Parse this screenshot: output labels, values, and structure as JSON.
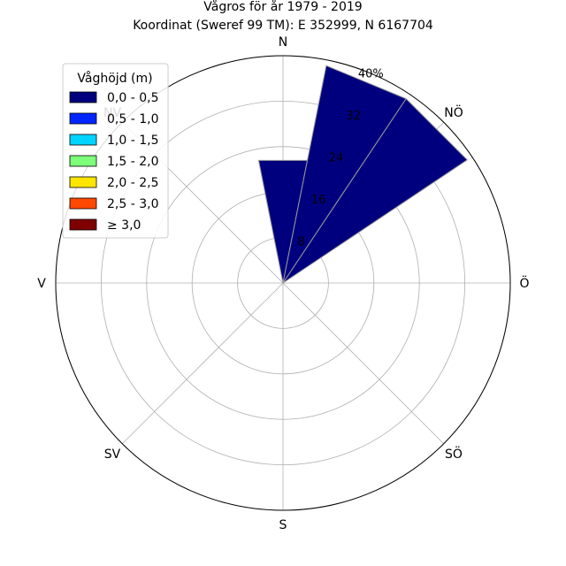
{
  "chart_data": {
    "type": "windrose",
    "title": "Vågros för år 1979 - 2019",
    "subtitle": "Koordinat (Sweref 99 TM): E 352999, N 6167704",
    "directions": [
      "N",
      "NÖ",
      "Ö",
      "SÖ",
      "S",
      "SV",
      "V",
      "NV"
    ],
    "radial_ticks": [
      "8",
      "16",
      "24",
      "32",
      "40%"
    ],
    "radial_tick_values": [
      8,
      16,
      24,
      32,
      40
    ],
    "r_max": 40,
    "legend": {
      "title": "Våghöjd (m)",
      "placement": "top-left",
      "bins": [
        "0,0 - 0,5",
        "0,5 - 1,0",
        "1,0 - 1,5",
        "1,5 - 2,0",
        "2,0 - 2,5",
        "2,5 - 3,0",
        "≥ 3,0"
      ],
      "colors": [
        "#00007f",
        "#0025ff",
        "#00d4ff",
        "#7dff7a",
        "#ffe500",
        "#ff4800",
        "#7f0000"
      ]
    },
    "bars": [
      {
        "direction_deg": 0,
        "width_deg": 22.5,
        "bin": "0,0 - 0,5",
        "value": 22
      },
      {
        "direction_deg": 22.5,
        "width_deg": 22.5,
        "bin": "0,0 - 0,5",
        "value": 39
      },
      {
        "direction_deg": 45,
        "width_deg": 22.5,
        "bin": "0,0 - 0,5",
        "value": 39
      }
    ]
  }
}
